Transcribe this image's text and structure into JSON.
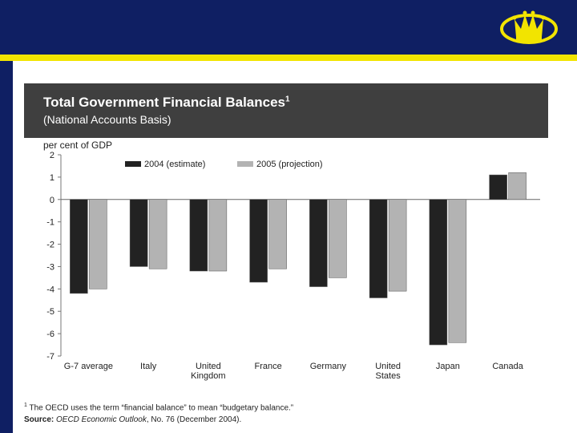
{
  "chart_data": {
    "type": "bar",
    "title": "Total Government Financial Balances",
    "title_superscript": "1",
    "subtitle": "(National Accounts Basis)",
    "ylabel": "per cent of GDP",
    "ylim": [
      -7,
      2
    ],
    "yticks": [
      "2",
      "1",
      "0",
      "-1",
      "-2",
      "-3",
      "-4",
      "-5",
      "-6",
      "-7"
    ],
    "categories": [
      [
        "G-7 average"
      ],
      [
        "Italy"
      ],
      [
        "United",
        "Kingdom"
      ],
      [
        "France"
      ],
      [
        "Germany"
      ],
      [
        "United",
        "States"
      ],
      [
        "Japan"
      ],
      [
        "Canada"
      ]
    ],
    "series": [
      {
        "name": "2004 (estimate)",
        "color": "#222222",
        "values": [
          -4.2,
          -3.0,
          -3.2,
          -3.7,
          -3.9,
          -4.4,
          -6.5,
          1.1
        ]
      },
      {
        "name": "2005 (projection)",
        "color": "#b3b3b3",
        "values": [
          -4.0,
          -3.1,
          -3.2,
          -3.1,
          -3.5,
          -4.1,
          -6.4,
          1.2
        ]
      }
    ]
  },
  "footnote": {
    "marker": "1",
    "text": "The OECD uses the term “financial balance” to mean “budgetary balance.”"
  },
  "source": {
    "label": "Source:",
    "publication": "OECD Economic Outlook",
    "rest": ", No. 76 (December 2004)."
  },
  "colors": {
    "banner": "#0f1f63",
    "stripe": "#f2e400",
    "title_box": "#3f3f3f"
  }
}
